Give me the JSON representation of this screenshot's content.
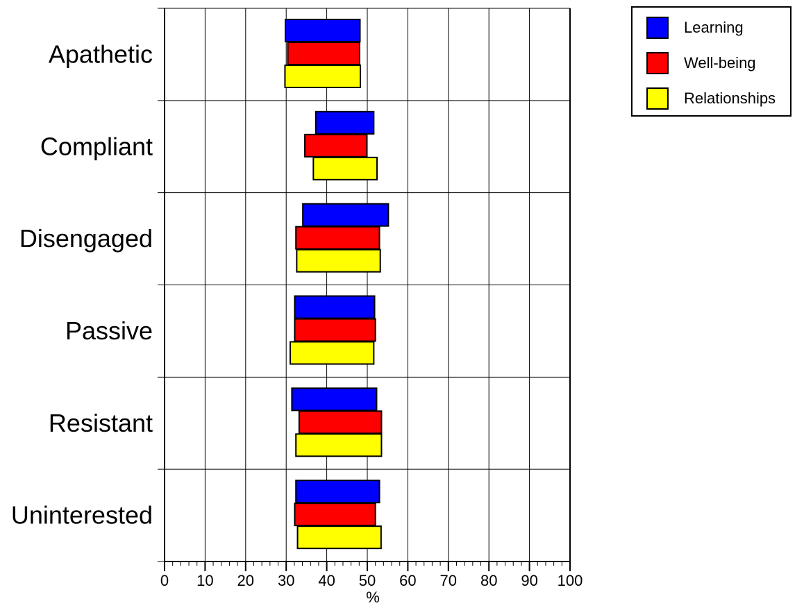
{
  "chart_data": {
    "type": "bar",
    "orientation": "horizontal",
    "style": "floating",
    "categories": [
      "Apathetic",
      "Compliant",
      "Disengaged",
      "Passive",
      "Resistant",
      "Uninterested"
    ],
    "series": [
      {
        "name": "Learning",
        "color": "#0000ff",
        "ranges": [
          [
            29.8,
            48.2
          ],
          [
            37.3,
            51.6
          ],
          [
            34.1,
            55.2
          ],
          [
            32.1,
            51.8
          ],
          [
            31.4,
            52.3
          ],
          [
            32.4,
            53.0
          ]
        ]
      },
      {
        "name": "Well-being",
        "color": "#ff0000",
        "ranges": [
          [
            30.4,
            48.1
          ],
          [
            34.6,
            49.9
          ],
          [
            32.4,
            53.0
          ],
          [
            32.1,
            52.0
          ],
          [
            33.2,
            53.5
          ],
          [
            32.1,
            52.0
          ]
        ]
      },
      {
        "name": "Relationships",
        "color": "#ffff00",
        "ranges": [
          [
            29.7,
            48.3
          ],
          [
            36.7,
            52.4
          ],
          [
            32.6,
            53.2
          ],
          [
            31.0,
            51.6
          ],
          [
            32.4,
            53.5
          ],
          [
            32.8,
            53.4
          ]
        ]
      }
    ],
    "xlabel": "%",
    "xlim": [
      0,
      100
    ],
    "xticks": [
      0,
      10,
      20,
      30,
      40,
      50,
      60,
      70,
      80,
      90,
      100
    ],
    "grid": true,
    "legend_position": "top-right"
  }
}
